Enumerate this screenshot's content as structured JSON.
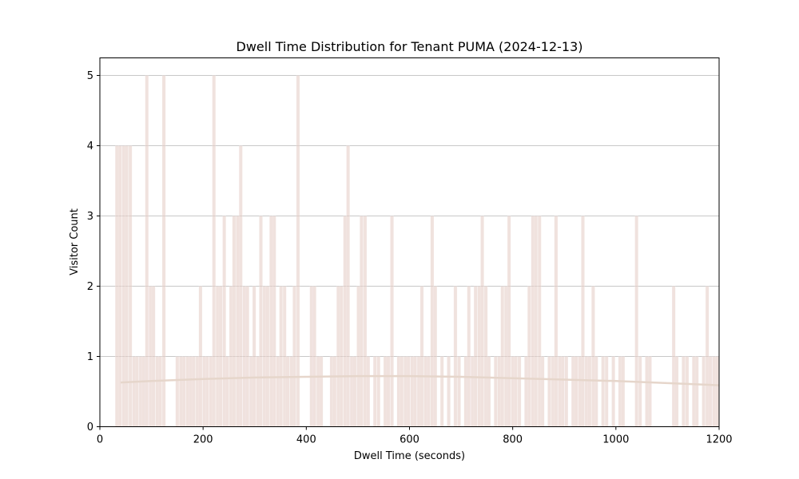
{
  "chart_data": {
    "type": "bar",
    "title": "Dwell Time Distribution for Tenant PUMA (2024-12-13)",
    "xlabel": "Dwell Time (seconds)",
    "ylabel": "Visitor Count",
    "xlim": [
      0,
      1200
    ],
    "ylim": [
      0,
      5.25
    ],
    "x_ticks": [
      "0",
      "200",
      "400",
      "600",
      "800",
      "1000",
      "1200"
    ],
    "y_ticks": [
      "0",
      "1",
      "2",
      "3",
      "4",
      "5"
    ],
    "grid": "horizontal",
    "bar_color": "#e6cfc8",
    "curve_color": "#e6d6cb",
    "bin_width": 6.5,
    "x": [
      33,
      39,
      46,
      52,
      59,
      66,
      72,
      79,
      85,
      91,
      98,
      104,
      111,
      117,
      124,
      150,
      157,
      163,
      170,
      176,
      182,
      189,
      195,
      202,
      208,
      215,
      221,
      228,
      234,
      241,
      247,
      254,
      260,
      267,
      273,
      280,
      286,
      293,
      299,
      306,
      312,
      319,
      325,
      332,
      338,
      345,
      351,
      358,
      364,
      371,
      377,
      384,
      410,
      416,
      423,
      429,
      449,
      455,
      462,
      468,
      475,
      481,
      488,
      494,
      501,
      507,
      514,
      520,
      533,
      540,
      553,
      559,
      566,
      579,
      585,
      592,
      598,
      605,
      611,
      618,
      624,
      631,
      637,
      644,
      650,
      663,
      676,
      689,
      696,
      709,
      715,
      722,
      728,
      735,
      741,
      748,
      754,
      767,
      774,
      780,
      787,
      793,
      800,
      806,
      813,
      826,
      832,
      839,
      845,
      852,
      858,
      871,
      878,
      884,
      891,
      897,
      904,
      917,
      923,
      930,
      936,
      943,
      949,
      956,
      962,
      975,
      982,
      995,
      1008,
      1014,
      1040,
      1047,
      1060,
      1066,
      1112,
      1118,
      1131,
      1138,
      1151,
      1157,
      1170,
      1177,
      1183,
      1190,
      1196
    ],
    "values": [
      4,
      4,
      4,
      4,
      4,
      1,
      1,
      1,
      1,
      5,
      2,
      2,
      1,
      1,
      5,
      1,
      1,
      1,
      1,
      1,
      1,
      1,
      2,
      1,
      1,
      1,
      5,
      2,
      2,
      3,
      1,
      2,
      3,
      3,
      4,
      2,
      2,
      1,
      2,
      1,
      3,
      2,
      2,
      3,
      3,
      1,
      2,
      2,
      1,
      1,
      2,
      5,
      2,
      2,
      1,
      1,
      1,
      1,
      2,
      2,
      3,
      4,
      1,
      1,
      2,
      3,
      3,
      1,
      1,
      1,
      1,
      1,
      3,
      1,
      1,
      1,
      1,
      1,
      1,
      1,
      2,
      1,
      1,
      3,
      2,
      1,
      1,
      2,
      1,
      1,
      2,
      1,
      2,
      2,
      3,
      2,
      1,
      1,
      1,
      2,
      2,
      3,
      1,
      1,
      1,
      1,
      2,
      3,
      3,
      3,
      1,
      1,
      1,
      3,
      1,
      1,
      1,
      1,
      1,
      1,
      3,
      1,
      1,
      2,
      1,
      1,
      1,
      1,
      1,
      1,
      3,
      1,
      1,
      1,
      2,
      1,
      1,
      1,
      1,
      1,
      1,
      2,
      1,
      1,
      1
    ],
    "kde": {
      "x": [
        40,
        100,
        200,
        300,
        400,
        500,
        600,
        700,
        800,
        900,
        1000,
        1100,
        1200
      ],
      "y": [
        0.63,
        0.65,
        0.68,
        0.7,
        0.71,
        0.72,
        0.72,
        0.71,
        0.69,
        0.67,
        0.65,
        0.62,
        0.59
      ]
    }
  }
}
